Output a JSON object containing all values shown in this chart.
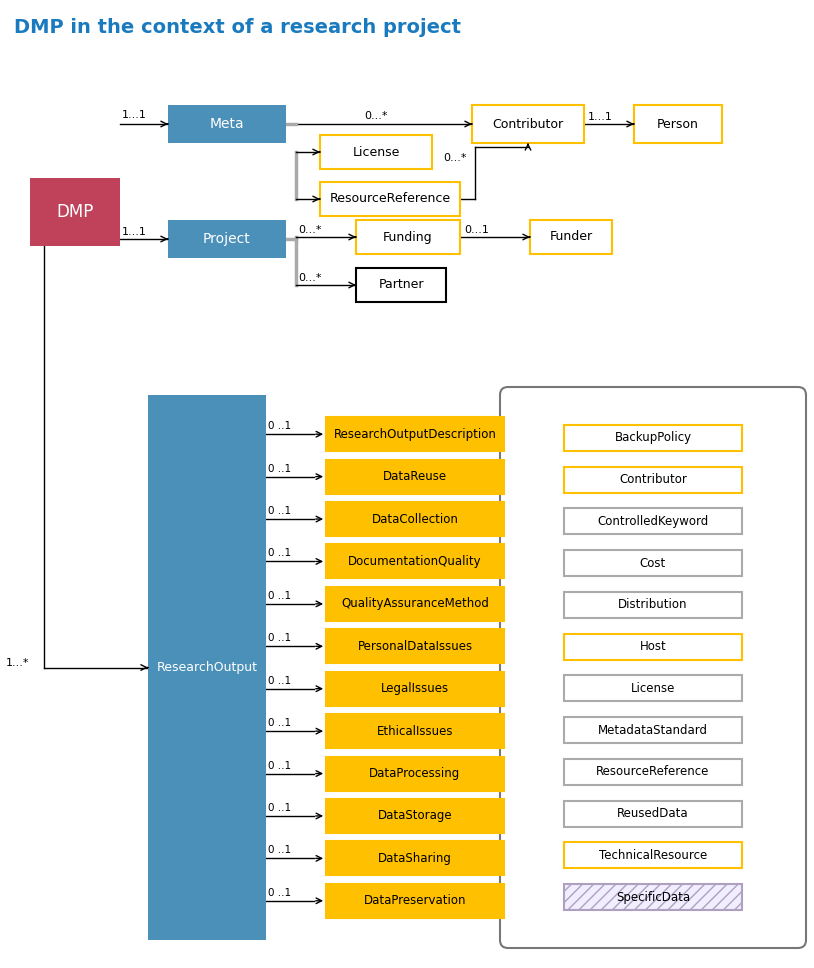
{
  "title": "DMP in the context of a research project",
  "title_color": "#1a7abf",
  "title_fontsize": 14,
  "bg_color": "#ffffff",
  "colors": {
    "blue_box": "#4a90b8",
    "red_box": "#c0415a",
    "yellow_fill": "#ffc000",
    "yellow_edge": "#ffc000",
    "white_fill": "#ffffff",
    "black_edge": "#000000",
    "gray_bracket": "#999999",
    "sidebar_edge": "#666666"
  },
  "sidebar_items": [
    {
      "label": "BackupPolicy",
      "edge": "#ffc000"
    },
    {
      "label": "Contributor",
      "edge": "#ffc000"
    },
    {
      "label": "ControlledKeyword",
      "edge": "#aaaaaa"
    },
    {
      "label": "Cost",
      "edge": "#aaaaaa"
    },
    {
      "label": "Distribution",
      "edge": "#aaaaaa"
    },
    {
      "label": "Host",
      "edge": "#ffc000"
    },
    {
      "label": "License",
      "edge": "#aaaaaa"
    },
    {
      "label": "MetadataStandard",
      "edge": "#aaaaaa"
    },
    {
      "label": "ResourceReference",
      "edge": "#aaaaaa"
    },
    {
      "label": "ReusedData",
      "edge": "#aaaaaa"
    },
    {
      "label": "TechnicalResource",
      "edge": "#ffc000"
    },
    {
      "label": "SpecificData",
      "edge": "#b0a0c0",
      "hatched": true
    }
  ],
  "ro_items": [
    "ResearchOutputDescription",
    "DataReuse",
    "DataCollection",
    "DocumentationQuality",
    "QualityAssuranceMethod",
    "PersonalDataIssues",
    "LegalIssues",
    "EthicalIssues",
    "DataProcessing",
    "DataStorage",
    "DataSharing",
    "DataPreservation"
  ]
}
